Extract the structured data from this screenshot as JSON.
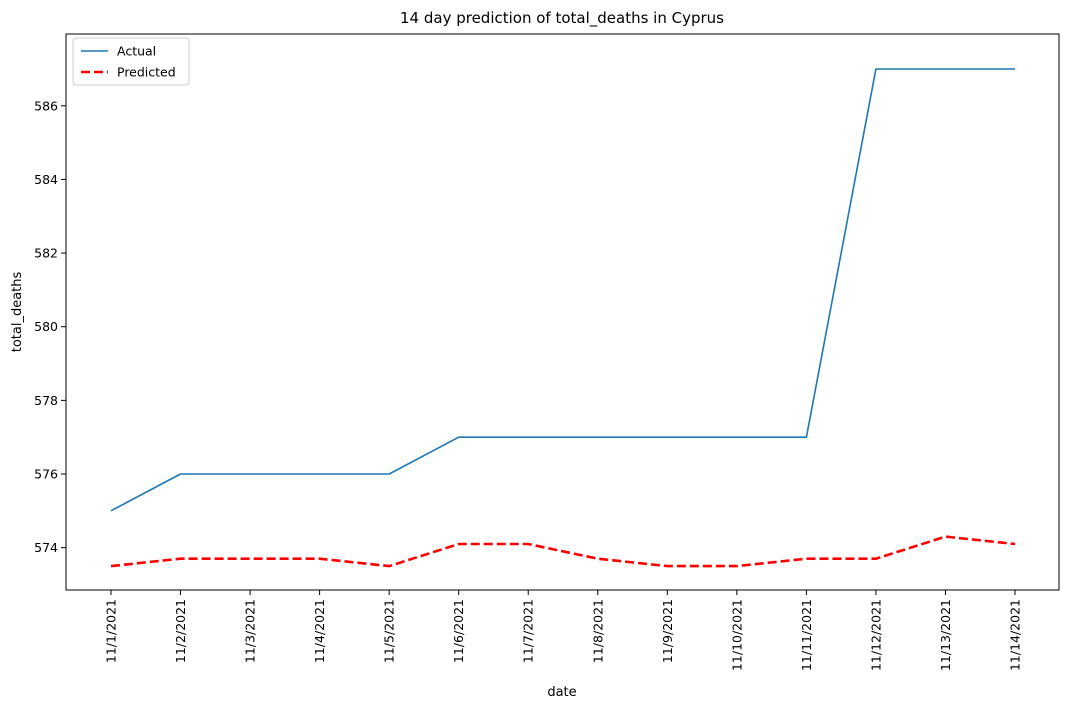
{
  "chart_data": {
    "type": "line",
    "title": "14 day prediction of total_deaths in Cyprus",
    "xlabel": "date",
    "ylabel": "total_deaths",
    "categories": [
      "11/1/2021",
      "11/2/2021",
      "11/3/2021",
      "11/4/2021",
      "11/5/2021",
      "11/6/2021",
      "11/7/2021",
      "11/8/2021",
      "11/9/2021",
      "11/10/2021",
      "11/11/2021",
      "11/12/2021",
      "11/13/2021",
      "11/14/2021"
    ],
    "series": [
      {
        "name": "Actual",
        "color": "#1f77b4",
        "style": "solid",
        "values": [
          575,
          576,
          576,
          576,
          576,
          577,
          577,
          577,
          577,
          577,
          577,
          587,
          587,
          587
        ]
      },
      {
        "name": "Predicted",
        "color": "#ff0000",
        "style": "dashed",
        "values": [
          573.5,
          573.7,
          573.7,
          573.7,
          573.5,
          574.1,
          574.1,
          573.7,
          573.5,
          573.5,
          573.7,
          573.7,
          574.3,
          574.1
        ]
      }
    ],
    "ylim": [
      572.85,
      587.95
    ],
    "yticks": [
      574,
      576,
      578,
      580,
      582,
      584,
      586
    ],
    "legend": "top-left",
    "grid": false
  }
}
